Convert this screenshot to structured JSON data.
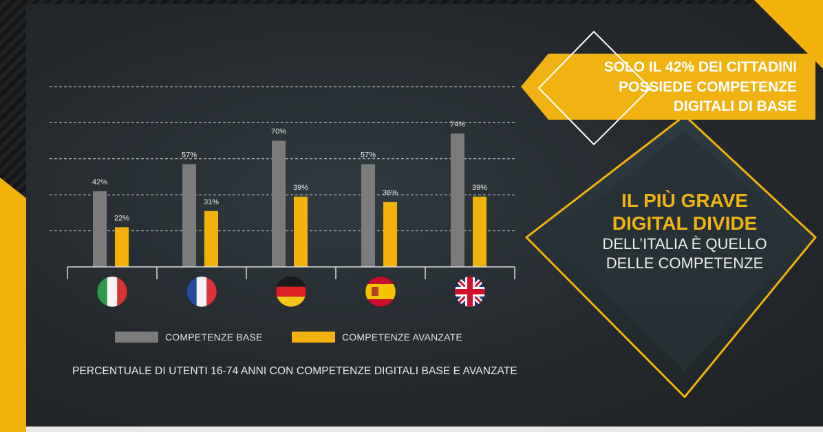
{
  "chart_data": {
    "type": "bar",
    "categories": [
      "Italia",
      "Francia",
      "Germania",
      "Spagna",
      "Regno Unito"
    ],
    "series": [
      {
        "name": "COMPETENZE BASE",
        "values": [
          42,
          57,
          70,
          57,
          74
        ],
        "color": "#7b7b7b"
      },
      {
        "name": "COMPETENZE AVANZATE",
        "values": [
          22,
          31,
          39,
          36,
          39
        ],
        "color": "#f2b20a"
      }
    ],
    "labels": [
      [
        "42%",
        "57%",
        "70%",
        "57%",
        "74%"
      ],
      [
        "22%",
        "31%",
        "39%",
        "36%",
        "39%"
      ]
    ],
    "ylim": [
      0,
      100
    ],
    "grid": true,
    "legend_position": "bottom",
    "title": "",
    "xlabel": "",
    "ylabel": ""
  },
  "legend": {
    "base": "COMPETENZE BASE",
    "avanzate": "COMPETENZE AVANZATE"
  },
  "subtitle": "PERCENTUALE DI UTENTI 16-74 ANNI CON COMPETENZE DIGITALI BASE E AVANZATE",
  "banner": {
    "line1": "SOLO IL 42% DEI CITTADINI",
    "line2": "POSSIEDE COMPETENZE",
    "line3": "DIGITALI DI BASE"
  },
  "headline": {
    "line1": "IL PIÙ GRAVE",
    "line2": "DIGITAL DIVIDE",
    "line3": "DELL’ITALIA È QUELLO",
    "line4": "DELLE COMPETENZE"
  },
  "flags": [
    "italy-flag-icon",
    "france-flag-icon",
    "germany-flag-icon",
    "spain-flag-icon",
    "uk-flag-icon"
  ],
  "colors": {
    "accent": "#f2b20a",
    "bar_base": "#7b7b7b",
    "background": "#25292d"
  }
}
